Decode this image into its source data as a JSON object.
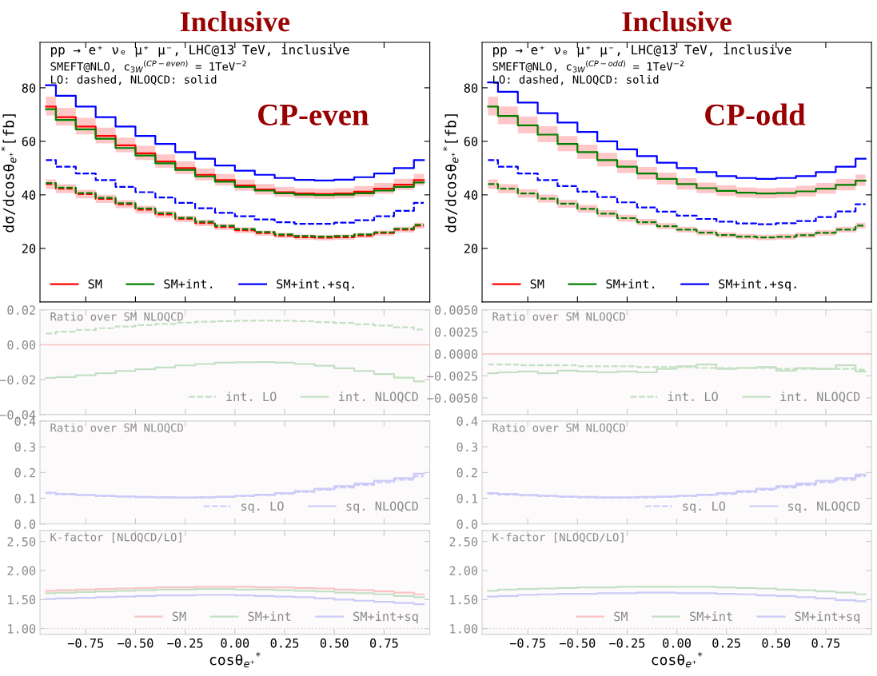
{
  "chart_data": [
    {
      "type": "step",
      "title": "Inclusive",
      "subtitle": "CP-even",
      "ylabel": "dσ/dcosθ$_{e⁺}$$^{*}$[fb]",
      "annotations": [
        "pp → e⁺ νₑ μ⁺ μ⁻, LHC@13 TeV, inclusive",
        "SMEFT@NLO, c$_{3W}$$^{(CP−even)}$ = 1TeV$^{−2}$",
        "LO: dashed, NLOQCD: solid"
      ],
      "xlim": [
        -0.98,
        0.98
      ],
      "xticks": [
        {
          "value": -0.75,
          "label": null
        },
        {
          "value": -0.5,
          "label": null
        },
        {
          "value": -0.25,
          "label": null
        },
        {
          "value": 0,
          "label": null
        },
        {
          "value": 0.25,
          "label": null
        },
        {
          "value": 0.5,
          "label": null
        },
        {
          "value": 0.75,
          "label": null
        }
      ],
      "ylim": [
        0,
        97
      ],
      "yticks": [
        20,
        40,
        60,
        80
      ],
      "tick_labels": "y",
      "legend": "bottom left",
      "x": [
        -0.95,
        -0.85,
        -0.75,
        -0.65,
        -0.55,
        -0.45,
        -0.35,
        -0.25,
        -0.15,
        -0.05,
        0.05,
        0.15,
        0.25,
        0.35,
        0.45,
        0.55,
        0.65,
        0.75,
        0.85,
        0.95
      ],
      "series": [
        {
          "name": "SM",
          "color": "#ff0000",
          "values": [
            73,
            69,
            65.5,
            62,
            58.5,
            55.5,
            52.5,
            50,
            47.5,
            45.5,
            43.5,
            42,
            41,
            40.5,
            40.3,
            40.5,
            41.2,
            42.3,
            43.8,
            45.5
          ],
          "lower": [
            69.7,
            65.9,
            62.6,
            59.2,
            55.9,
            53,
            50.1,
            47.8,
            45.4,
            43.5,
            41.5,
            40.1,
            39.2,
            38.7,
            38.5,
            38.7,
            39.3,
            40.4,
            41.8,
            43.5
          ],
          "upper": [
            76.7,
            72.5,
            68.8,
            65.1,
            61.4,
            58.3,
            55.1,
            52.5,
            49.9,
            47.8,
            45.7,
            44.1,
            43,
            42.5,
            42.3,
            42.5,
            43.3,
            44.4,
            46,
            47.8
          ]
        },
        {
          "name": "SM+int.",
          "color": "#008000",
          "values": [
            72,
            68,
            64.5,
            61,
            57.5,
            54.7,
            51.8,
            49.3,
            46.9,
            44.9,
            43,
            41.6,
            40.6,
            40.1,
            39.9,
            40.1,
            40.6,
            41.6,
            43,
            44.6
          ]
        },
        {
          "name": "SM+int.+sq.",
          "color": "#0000ff",
          "values": [
            81,
            77,
            73,
            69,
            65.5,
            62,
            59,
            56,
            53.5,
            51,
            49,
            47.5,
            46.3,
            45.6,
            45.4,
            45.7,
            46.6,
            48,
            50,
            53
          ]
        },
        {
          "color": "#ff0000",
          "line_style": "dashed",
          "values": [
            44,
            42.3,
            40.3,
            38.5,
            36.5,
            34.5,
            32.7,
            31,
            29.5,
            28,
            26.8,
            25.7,
            24.8,
            24.2,
            24,
            24.2,
            24.8,
            25.7,
            27,
            28.5
          ],
          "lower": [
            42.2,
            40.6,
            38.7,
            37,
            35,
            33.1,
            31.4,
            29.8,
            28.3,
            26.9,
            25.7,
            24.7,
            23.8,
            23.2,
            23,
            23.2,
            23.8,
            24.7,
            25.9,
            27.4
          ],
          "upper": [
            45.8,
            44,
            41.9,
            40,
            38,
            35.9,
            34,
            32.2,
            30.7,
            29.1,
            27.9,
            26.7,
            25.8,
            25.2,
            25,
            25.2,
            25.8,
            26.7,
            28.1,
            29.6
          ]
        },
        {
          "color": "#008000",
          "line_style": "dashed",
          "values": [
            44.4,
            42.7,
            40.7,
            38.9,
            36.9,
            34.9,
            33.1,
            31.4,
            29.9,
            28.4,
            27.2,
            26.1,
            25.2,
            24.6,
            24.4,
            24.6,
            25.2,
            26,
            27.3,
            28.8
          ]
        },
        {
          "color": "#0000ff",
          "line_style": "dashed",
          "values": [
            53,
            50.5,
            48,
            45.5,
            43,
            41,
            39,
            37,
            35,
            33.3,
            32,
            30.8,
            29.8,
            29.2,
            29.2,
            29.6,
            30.5,
            32,
            34,
            37
          ]
        }
      ]
    },
    {
      "type": "step",
      "title": "Inclusive",
      "subtitle": "CP-odd",
      "ylabel": "dσ/dcosθ$_{e⁺}$$^{*}$[fb]",
      "annotations": [
        "pp → e⁺ νₑ μ⁺ μ⁻, LHC@13 TeV, inclusive",
        "SMEFT@NLO, c$_{3W}$$^{(CP−odd)}$ = 1TeV$^{−2}$",
        "LO: dashed, NLOQCD: solid"
      ],
      "xlim": [
        -0.98,
        0.98
      ],
      "xticks": [
        {
          "value": -0.75,
          "label": null
        },
        {
          "value": -0.5,
          "label": null
        },
        {
          "value": -0.25,
          "label": null
        },
        {
          "value": 0,
          "label": null
        },
        {
          "value": 0.25,
          "label": null
        },
        {
          "value": 0.5,
          "label": null
        },
        {
          "value": 0.75,
          "label": null
        }
      ],
      "ylim": [
        0,
        97
      ],
      "yticks": [
        20,
        40,
        60,
        80
      ],
      "tick_labels": "y",
      "legend": "bottom left",
      "x": [
        -0.95,
        -0.85,
        -0.75,
        -0.65,
        -0.55,
        -0.45,
        -0.35,
        -0.25,
        -0.15,
        -0.05,
        0.05,
        0.15,
        0.25,
        0.35,
        0.45,
        0.55,
        0.65,
        0.75,
        0.85,
        0.95
      ],
      "series": [
        {
          "name": "SM",
          "color": "#ff0000",
          "values": [
            null,
            null,
            null,
            null,
            null,
            null,
            null,
            null,
            null,
            null,
            null,
            null,
            null,
            null,
            null,
            null,
            null,
            null,
            null,
            null
          ],
          "lower": [
            69.7,
            66.4,
            63,
            59.7,
            56.3,
            53.5,
            50.6,
            48.2,
            45.8,
            43.9,
            42,
            40.6,
            39.6,
            39,
            38.7,
            38.9,
            39.4,
            40.4,
            41.7,
            43.3
          ],
          "upper": [
            76.7,
            73,
            69.3,
            65.6,
            62,
            58.8,
            55.7,
            53,
            50.4,
            48.3,
            46.2,
            44.6,
            43.6,
            42.8,
            42.5,
            42.7,
            43.4,
            44.4,
            45.9,
            47.6
          ]
        },
        {
          "name": "SM+int.",
          "color": "#008000",
          "values": [
            73,
            69.5,
            66,
            62.5,
            59,
            56,
            53,
            50.5,
            48,
            46,
            44,
            42.5,
            41.5,
            40.8,
            40.5,
            40.7,
            41.3,
            42.3,
            43.7,
            45.3
          ]
        },
        {
          "name": "SM+int.+sq.",
          "color": "#0000ff",
          "values": [
            82,
            78.5,
            74.5,
            70.5,
            67,
            63.5,
            60,
            57,
            54.5,
            52,
            50,
            48.5,
            47,
            46.3,
            46,
            46.3,
            47,
            48.5,
            50.5,
            53.5
          ]
        },
        {
          "color": "#ff0000",
          "line_style": "dashed",
          "values": [
            null,
            null,
            null,
            null,
            null,
            null,
            null,
            null,
            null,
            null,
            null,
            null,
            null,
            null,
            null,
            null,
            null,
            null,
            null,
            null
          ],
          "lower": [
            42.2,
            40.6,
            38.9,
            37.1,
            35.2,
            33.4,
            31.7,
            30,
            28.6,
            27.2,
            25.9,
            24.9,
            24,
            23.4,
            23.1,
            23.3,
            23.9,
            24.8,
            25.9,
            27.4
          ],
          "upper": [
            45.8,
            44,
            42.1,
            40.1,
            38.2,
            36.2,
            34.3,
            32.6,
            31,
            29.4,
            28.1,
            26.9,
            26,
            25.4,
            25.1,
            25.3,
            25.9,
            26.8,
            28.1,
            29.6
          ]
        },
        {
          "color": "#008000",
          "line_style": "dashed",
          "values": [
            44,
            42.3,
            40.5,
            38.6,
            36.7,
            34.8,
            33,
            31.3,
            29.8,
            28.3,
            27,
            25.9,
            25,
            24.4,
            24.1,
            24.3,
            24.9,
            25.8,
            27,
            28.5
          ]
        },
        {
          "color": "#0000ff",
          "line_style": "dashed",
          "values": [
            53,
            50.5,
            48,
            45.5,
            43.3,
            41.2,
            39.2,
            37.2,
            35.3,
            33.7,
            32.2,
            31,
            30,
            29.3,
            29,
            29.4,
            30.2,
            31.7,
            33.8,
            36.5
          ]
        }
      ]
    },
    {
      "type": "step",
      "annotations": [
        "Ratio over SM NLOQCD"
      ],
      "xlim": [
        -0.98,
        0.98
      ],
      "xticks": [
        {
          "value": -0.75,
          "label": null
        },
        {
          "value": -0.5,
          "label": null
        },
        {
          "value": -0.25,
          "label": null
        },
        {
          "value": 0,
          "label": null
        },
        {
          "value": 0.25,
          "label": null
        },
        {
          "value": 0.5,
          "label": null
        },
        {
          "value": 0.75,
          "label": null
        }
      ],
      "ylim": [
        -0.04,
        0.02
      ],
      "yticks": [
        {
          "value": -0.04,
          "label": "−0.04"
        },
        {
          "value": -0.02,
          "label": "−0.02"
        },
        {
          "value": 0,
          "label": "0.00"
        },
        {
          "value": 0.02,
          "label": "0.02"
        }
      ],
      "tick_labels": "y",
      "legend": "bottom right",
      "ref_lines": [
        {
          "axis": "y",
          "value": 0,
          "color": "#f8c4c4"
        }
      ],
      "x": [
        -0.95,
        -0.85,
        -0.75,
        -0.65,
        -0.55,
        -0.45,
        -0.35,
        -0.25,
        -0.15,
        -0.05,
        0.05,
        0.15,
        0.25,
        0.35,
        0.45,
        0.55,
        0.65,
        0.75,
        0.85,
        0.95
      ],
      "series": [
        {
          "name": "int. LO",
          "color": "#c4e0c4",
          "line_style": "dashed",
          "values": [
            0.0065,
            0.0075,
            0.0085,
            0.0095,
            0.0105,
            0.0113,
            0.012,
            0.0127,
            0.0132,
            0.0136,
            0.0138,
            0.0139,
            0.0138,
            0.0135,
            0.013,
            0.0125,
            0.0117,
            0.011,
            0.01,
            0.0088
          ]
        },
        {
          "name": "int. NLOQCD",
          "color": "#c4e0c4",
          "values": [
            -0.019,
            -0.0185,
            -0.0175,
            -0.0163,
            -0.015,
            -0.014,
            -0.013,
            -0.0118,
            -0.011,
            -0.0103,
            -0.01,
            -0.0099,
            -0.0102,
            -0.011,
            -0.012,
            -0.0135,
            -0.015,
            -0.0168,
            -0.0188,
            -0.021
          ]
        }
      ]
    },
    {
      "type": "step",
      "annotations": [
        "Ratio over SM NLOQCD"
      ],
      "xlim": [
        -0.98,
        0.98
      ],
      "xticks": [
        {
          "value": -0.75,
          "label": null
        },
        {
          "value": -0.5,
          "label": null
        },
        {
          "value": -0.25,
          "label": null
        },
        {
          "value": 0,
          "label": null
        },
        {
          "value": 0.25,
          "label": null
        },
        {
          "value": 0.5,
          "label": null
        },
        {
          "value": 0.75,
          "label": null
        }
      ],
      "ylim": [
        -0.0069,
        0.005
      ],
      "yticks": [
        {
          "value": -0.005,
          "label": "−0.0050"
        },
        {
          "value": -0.0025,
          "label": "−0.0025"
        },
        {
          "value": 0,
          "label": "0.0000"
        },
        {
          "value": 0.0025,
          "label": "0.0025"
        },
        {
          "value": 0.005,
          "label": "0.0050"
        }
      ],
      "tick_labels": "y",
      "legend": "bottom right",
      "ref_lines": [
        {
          "axis": "y",
          "value": 0,
          "color": "#f8c4c4"
        }
      ],
      "x": [
        -0.95,
        -0.85,
        -0.75,
        -0.65,
        -0.55,
        -0.45,
        -0.35,
        -0.25,
        -0.15,
        -0.05,
        0.05,
        0.15,
        0.25,
        0.35,
        0.45,
        0.55,
        0.65,
        0.75,
        0.85,
        0.95
      ],
      "series": [
        {
          "name": "int. LO",
          "color": "#c4e0c4",
          "line_style": "dashed",
          "values": [
            -0.0012,
            -0.0012,
            -0.0013,
            -0.0013,
            -0.0013,
            -0.0014,
            -0.0014,
            -0.0014,
            -0.0015,
            -0.0015,
            -0.0015,
            -0.0016,
            -0.0016,
            -0.0016,
            -0.0016,
            -0.0017,
            -0.0017,
            -0.0017,
            -0.0017,
            -0.0018
          ]
        },
        {
          "name": "int. NLOQCD",
          "color": "#c4e0c4",
          "values": [
            -0.0022,
            -0.0021,
            -0.002,
            -0.0022,
            -0.0019,
            -0.002,
            -0.0021,
            -0.002,
            -0.0021,
            -0.0017,
            -0.0014,
            -0.0012,
            -0.0017,
            -0.0016,
            -0.0015,
            -0.0019,
            -0.0016,
            -0.0017,
            -0.0013,
            -0.002
          ]
        }
      ]
    },
    {
      "type": "step",
      "annotations": [
        "Ratio over SM NLOQCD"
      ],
      "xlim": [
        -0.98,
        0.98
      ],
      "xticks": [
        {
          "value": -0.75,
          "label": null
        },
        {
          "value": -0.5,
          "label": null
        },
        {
          "value": -0.25,
          "label": null
        },
        {
          "value": 0,
          "label": null
        },
        {
          "value": 0.25,
          "label": null
        },
        {
          "value": 0.5,
          "label": null
        },
        {
          "value": 0.75,
          "label": null
        }
      ],
      "ylim": [
        0,
        0.4
      ],
      "yticks": [
        {
          "value": 0,
          "label": "0.0"
        },
        {
          "value": 0.1,
          "label": "0.1"
        },
        {
          "value": 0.2,
          "label": "0.2"
        },
        {
          "value": 0.3,
          "label": "0.3"
        },
        {
          "value": 0.4,
          "label": "0.4"
        }
      ],
      "tick_labels": "y",
      "legend": "bottom right",
      "x": [
        -0.95,
        -0.85,
        -0.75,
        -0.65,
        -0.55,
        -0.45,
        -0.35,
        -0.25,
        -0.15,
        -0.05,
        0.05,
        0.15,
        0.25,
        0.35,
        0.45,
        0.55,
        0.65,
        0.75,
        0.85,
        0.95
      ],
      "series": [
        {
          "name": "sq. LO",
          "color": "#cbcbf8",
          "line_style": "dashed",
          "values": [
            0.12,
            0.115,
            0.112,
            0.108,
            0.106,
            0.104,
            0.103,
            0.102,
            0.103,
            0.105,
            0.108,
            0.112,
            0.118,
            0.125,
            0.133,
            0.142,
            0.152,
            0.162,
            0.172,
            0.185
          ]
        },
        {
          "name": "sq. NLOQCD",
          "color": "#cbcbf8",
          "values": [
            0.122,
            0.117,
            0.113,
            0.11,
            0.107,
            0.105,
            0.104,
            0.103,
            0.104,
            0.106,
            0.11,
            0.114,
            0.12,
            0.128,
            0.137,
            0.147,
            0.157,
            0.168,
            0.178,
            0.195
          ]
        }
      ]
    },
    {
      "type": "step",
      "annotations": [
        "Ratio over SM NLOQCD"
      ],
      "xlim": [
        -0.98,
        0.98
      ],
      "xticks": [
        {
          "value": -0.75,
          "label": null
        },
        {
          "value": -0.5,
          "label": null
        },
        {
          "value": -0.25,
          "label": null
        },
        {
          "value": 0,
          "label": null
        },
        {
          "value": 0.25,
          "label": null
        },
        {
          "value": 0.5,
          "label": null
        },
        {
          "value": 0.75,
          "label": null
        }
      ],
      "ylim": [
        0,
        0.4
      ],
      "yticks": [
        {
          "value": 0,
          "label": "0.0"
        },
        {
          "value": 0.1,
          "label": "0.1"
        },
        {
          "value": 0.2,
          "label": "0.2"
        },
        {
          "value": 0.3,
          "label": "0.3"
        },
        {
          "value": 0.4,
          "label": "0.4"
        }
      ],
      "tick_labels": "y",
      "legend": "bottom right",
      "x": [
        -0.95,
        -0.85,
        -0.75,
        -0.65,
        -0.55,
        -0.45,
        -0.35,
        -0.25,
        -0.15,
        -0.05,
        0.05,
        0.15,
        0.25,
        0.35,
        0.45,
        0.55,
        0.65,
        0.75,
        0.85,
        0.95
      ],
      "series": [
        {
          "name": "sq. LO",
          "color": "#cbcbf8",
          "line_style": "dashed",
          "values": [
            0.118,
            0.114,
            0.111,
            0.108,
            0.105,
            0.103,
            0.102,
            0.102,
            0.103,
            0.105,
            0.108,
            0.112,
            0.117,
            0.124,
            0.133,
            0.142,
            0.152,
            0.162,
            0.172,
            0.185
          ]
        },
        {
          "name": "sq. NLOQCD",
          "color": "#cbcbf8",
          "values": [
            0.12,
            0.117,
            0.113,
            0.11,
            0.107,
            0.105,
            0.104,
            0.104,
            0.105,
            0.107,
            0.11,
            0.114,
            0.12,
            0.128,
            0.137,
            0.147,
            0.157,
            0.168,
            0.178,
            0.192
          ]
        }
      ]
    },
    {
      "type": "step",
      "annotations": [
        "K-factor [NLOQCD/LO]"
      ],
      "xlabel": "cosθ$_{e⁺}$$^{*}$",
      "xlim": [
        -0.98,
        0.98
      ],
      "xticks": [
        {
          "value": -0.75,
          "label": "−0.75"
        },
        {
          "value": -0.5,
          "label": "−0.50"
        },
        {
          "value": -0.25,
          "label": "−0.25"
        },
        {
          "value": 0,
          "label": "0.00"
        },
        {
          "value": 0.25,
          "label": "0.25"
        },
        {
          "value": 0.5,
          "label": "0.50"
        },
        {
          "value": 0.75,
          "label": "0.75"
        }
      ],
      "ylim": [
        0.9,
        2.69
      ],
      "yticks": [
        {
          "value": 1,
          "label": "1.00"
        },
        {
          "value": 1.5,
          "label": "1.50"
        },
        {
          "value": 2,
          "label": "2.00"
        },
        {
          "value": 2.5,
          "label": "2.50"
        }
      ],
      "legend": "bottom right",
      "ref_lines": [
        {
          "axis": "y",
          "value": 1,
          "color": "#d9d9d9",
          "line_style": "dotted"
        }
      ],
      "x": [
        -0.95,
        -0.85,
        -0.75,
        -0.65,
        -0.55,
        -0.45,
        -0.35,
        -0.25,
        -0.15,
        -0.05,
        0.05,
        0.15,
        0.25,
        0.35,
        0.45,
        0.55,
        0.65,
        0.75,
        0.85,
        0.95
      ],
      "series": [
        {
          "name": "SM",
          "color": "#f8c4c4",
          "values": [
            1.65,
            1.66,
            1.67,
            1.68,
            1.69,
            1.7,
            1.71,
            1.71,
            1.72,
            1.72,
            1.72,
            1.71,
            1.71,
            1.7,
            1.69,
            1.67,
            1.66,
            1.64,
            1.62,
            1.59
          ]
        },
        {
          "name": "SM+int",
          "color": "#c4e0c4",
          "values": [
            1.61,
            1.62,
            1.63,
            1.64,
            1.65,
            1.66,
            1.67,
            1.67,
            1.68,
            1.68,
            1.67,
            1.67,
            1.66,
            1.65,
            1.64,
            1.62,
            1.61,
            1.59,
            1.56,
            1.54
          ]
        },
        {
          "name": "SM+int+sq",
          "color": "#cbcbf8",
          "values": [
            1.51,
            1.52,
            1.53,
            1.54,
            1.55,
            1.56,
            1.57,
            1.57,
            1.58,
            1.58,
            1.57,
            1.56,
            1.55,
            1.54,
            1.52,
            1.5,
            1.48,
            1.46,
            1.44,
            1.42
          ]
        }
      ]
    },
    {
      "type": "step",
      "annotations": [
        "K-factor [NLOQCD/LO]"
      ],
      "xlabel": "cosθ$_{e⁺}$$^{*}$",
      "xlim": [
        -0.98,
        0.98
      ],
      "xticks": [
        {
          "value": -0.75,
          "label": "−0.75"
        },
        {
          "value": -0.5,
          "label": "−0.50"
        },
        {
          "value": -0.25,
          "label": "−0.25"
        },
        {
          "value": 0,
          "label": "0.00"
        },
        {
          "value": 0.25,
          "label": "0.25"
        },
        {
          "value": 0.5,
          "label": "0.50"
        },
        {
          "value": 0.75,
          "label": "0.75"
        }
      ],
      "ylim": [
        0.9,
        2.69
      ],
      "yticks": [
        {
          "value": 1,
          "label": "1.00"
        },
        {
          "value": 1.5,
          "label": "1.50"
        },
        {
          "value": 2,
          "label": "2.00"
        },
        {
          "value": 2.5,
          "label": "2.50"
        }
      ],
      "legend": "bottom right",
      "ref_lines": [
        {
          "axis": "y",
          "value": 1,
          "color": "#d9d9d9",
          "line_style": "dotted"
        }
      ],
      "x": [
        -0.95,
        -0.85,
        -0.75,
        -0.65,
        -0.55,
        -0.45,
        -0.35,
        -0.25,
        -0.15,
        -0.05,
        0.05,
        0.15,
        0.25,
        0.35,
        0.45,
        0.55,
        0.65,
        0.75,
        0.85,
        0.95
      ],
      "series": [
        {
          "name": "SM",
          "color": "#f8c4c4",
          "values": [
            null,
            null,
            null,
            null,
            null,
            null,
            null,
            null,
            null,
            null,
            null,
            null,
            null,
            null,
            null,
            null,
            null,
            null,
            null,
            null
          ]
        },
        {
          "name": "SM+int",
          "color": "#c4e0c4",
          "values": [
            1.65,
            1.67,
            1.68,
            1.69,
            1.7,
            1.71,
            1.71,
            1.72,
            1.72,
            1.72,
            1.72,
            1.72,
            1.71,
            1.7,
            1.69,
            1.67,
            1.66,
            1.64,
            1.62,
            1.59
          ]
        },
        {
          "name": "SM+int+sq",
          "color": "#cbcbf8",
          "values": [
            1.55,
            1.56,
            1.58,
            1.59,
            1.6,
            1.6,
            1.61,
            1.61,
            1.62,
            1.62,
            1.61,
            1.61,
            1.6,
            1.59,
            1.57,
            1.56,
            1.54,
            1.52,
            1.49,
            1.47
          ]
        }
      ]
    }
  ]
}
